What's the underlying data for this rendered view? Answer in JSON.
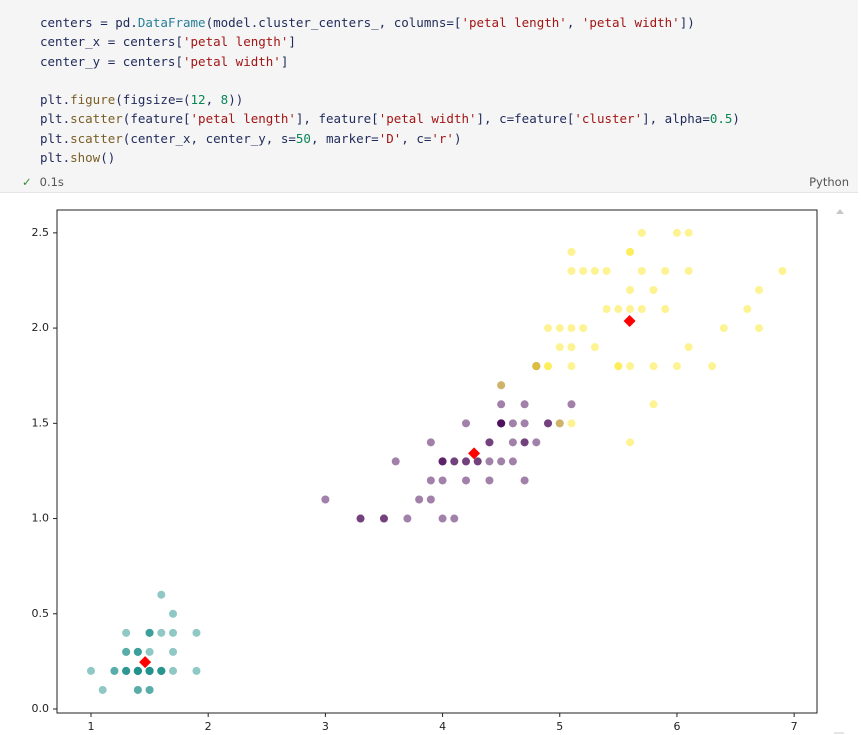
{
  "code": {
    "lines": [
      [
        [
          "centers = pd.",
          ""
        ],
        [
          "DataFrame",
          "t"
        ],
        [
          "(model.cluster_centers_, columns=[",
          ""
        ],
        [
          "'petal length'",
          "s"
        ],
        [
          ", ",
          ""
        ],
        [
          "'petal width'",
          "s"
        ],
        [
          "])",
          ""
        ]
      ],
      [
        [
          "center_x = centers[",
          ""
        ],
        [
          "'petal length'",
          "s"
        ],
        [
          "]",
          ""
        ]
      ],
      [
        [
          "center_y = centers[",
          ""
        ],
        [
          "'petal width'",
          "s"
        ],
        [
          "]",
          ""
        ]
      ],
      [],
      [
        [
          "plt.",
          ""
        ],
        [
          "figure",
          "f"
        ],
        [
          "(figsize=(",
          ""
        ],
        [
          "12",
          "n"
        ],
        [
          ", ",
          ""
        ],
        [
          "8",
          "n"
        ],
        [
          "))",
          ""
        ]
      ],
      [
        [
          "plt.",
          ""
        ],
        [
          "scatter",
          "f"
        ],
        [
          "(feature[",
          ""
        ],
        [
          "'petal length'",
          "s"
        ],
        [
          "], feature[",
          ""
        ],
        [
          "'petal width'",
          "s"
        ],
        [
          "], c=feature[",
          ""
        ],
        [
          "'cluster'",
          "s"
        ],
        [
          "], alpha=",
          ""
        ],
        [
          "0.5",
          "n"
        ],
        [
          ")",
          ""
        ]
      ],
      [
        [
          "plt.",
          ""
        ],
        [
          "scatter",
          "f"
        ],
        [
          "(center_x, center_y, s=",
          ""
        ],
        [
          "50",
          "n"
        ],
        [
          ", marker=",
          ""
        ],
        [
          "'D'",
          "s"
        ],
        [
          ", c=",
          ""
        ],
        [
          "'r'",
          "s"
        ],
        [
          ")",
          ""
        ]
      ],
      [
        [
          "plt.",
          ""
        ],
        [
          "show",
          "f"
        ],
        [
          "()",
          ""
        ]
      ]
    ],
    "status_icon": "✓",
    "status": "0.1s",
    "language": "Python"
  },
  "chart_data": {
    "type": "scatter",
    "xlim": [
      0.71,
      7.195
    ],
    "ylim": [
      -0.021,
      2.62
    ],
    "xticks": [
      1,
      2,
      3,
      4,
      5,
      6,
      7
    ],
    "yticks": [
      {
        "value": 0,
        "label": "0.0"
      },
      0.5,
      {
        "value": 1,
        "label": "1.0"
      },
      1.5,
      {
        "value": 2,
        "label": "2.0"
      },
      2.5
    ],
    "series": [
      {
        "color": "#21918c",
        "alpha": 0.5,
        "marker": "circle",
        "x": [
          1.4,
          1.4,
          1.3,
          1.5,
          1.4,
          1.7,
          1.4,
          1.5,
          1.4,
          1.5,
          1.5,
          1.6,
          1.4,
          1.1,
          1.2,
          1.5,
          1.3,
          1.4,
          1.7,
          1.5,
          1.7,
          1.5,
          1.0,
          1.7,
          1.9,
          1.6,
          1.6,
          1.5,
          1.4,
          1.6,
          1.6,
          1.5,
          1.5,
          1.4,
          1.5,
          1.2,
          1.3,
          1.4,
          1.3,
          1.5,
          1.3,
          1.3,
          1.3,
          1.6,
          1.9,
          1.4,
          1.6,
          1.4,
          1.5,
          1.4
        ],
        "y": [
          0.2,
          0.2,
          0.2,
          0.2,
          0.2,
          0.4,
          0.3,
          0.2,
          0.2,
          0.1,
          0.2,
          0.2,
          0.1,
          0.1,
          0.2,
          0.4,
          0.4,
          0.3,
          0.3,
          0.3,
          0.2,
          0.4,
          0.2,
          0.5,
          0.2,
          0.2,
          0.4,
          0.2,
          0.2,
          0.2,
          0.2,
          0.4,
          0.1,
          0.2,
          0.2,
          0.2,
          0.2,
          0.1,
          0.2,
          0.2,
          0.3,
          0.3,
          0.2,
          0.6,
          0.4,
          0.3,
          0.2,
          0.2,
          0.2,
          0.2
        ]
      },
      {
        "color": "#440154",
        "alpha": 0.5,
        "marker": "circle",
        "x": [
          4.7,
          4.5,
          4.0,
          4.6,
          4.5,
          4.7,
          3.3,
          4.6,
          3.9,
          3.5,
          4.2,
          4.0,
          4.7,
          3.6,
          4.4,
          4.5,
          4.1,
          4.5,
          3.9,
          4.8,
          4.0,
          4.9,
          4.7,
          4.3,
          4.4,
          4.8,
          4.5,
          3.5,
          3.8,
          3.7,
          3.9,
          5.1,
          4.5,
          4.5,
          4.7,
          4.4,
          4.1,
          4.0,
          4.4,
          4.6,
          4.0,
          3.3,
          4.2,
          4.2,
          4.2,
          4.3,
          3.0,
          4.1,
          4.8,
          4.9,
          5.0
        ],
        "y": [
          1.4,
          1.5,
          1.3,
          1.5,
          1.3,
          1.6,
          1.0,
          1.3,
          1.4,
          1.0,
          1.5,
          1.0,
          1.4,
          1.3,
          1.4,
          1.5,
          1.0,
          1.5,
          1.1,
          1.8,
          1.3,
          1.5,
          1.2,
          1.3,
          1.4,
          1.4,
          1.7,
          1.0,
          1.1,
          1.0,
          1.2,
          1.6,
          1.5,
          1.6,
          1.5,
          1.3,
          1.3,
          1.3,
          1.2,
          1.4,
          1.2,
          1.0,
          1.3,
          1.2,
          1.3,
          1.3,
          1.1,
          1.3,
          1.8,
          1.5,
          1.5
        ]
      },
      {
        "color": "#fde725",
        "alpha": 0.5,
        "marker": "circle",
        "x": [
          6.0,
          5.1,
          5.9,
          5.6,
          5.8,
          6.6,
          4.5,
          6.3,
          5.8,
          6.1,
          5.1,
          5.3,
          5.5,
          5.0,
          5.1,
          5.3,
          5.5,
          6.7,
          6.9,
          5.0,
          5.7,
          4.9,
          6.7,
          4.9,
          5.7,
          6.0,
          4.8,
          4.9,
          5.6,
          5.8,
          6.1,
          6.4,
          5.6,
          5.1,
          5.6,
          6.1,
          5.6,
          5.5,
          4.8,
          5.4,
          5.6,
          5.1,
          5.9,
          5.7,
          5.2,
          5.0,
          5.2,
          5.4,
          5.1
        ],
        "y": [
          2.5,
          1.9,
          2.1,
          1.8,
          2.2,
          2.1,
          1.7,
          1.8,
          1.8,
          2.5,
          2.0,
          1.9,
          2.1,
          2.0,
          2.4,
          2.3,
          1.8,
          2.2,
          2.3,
          1.5,
          2.3,
          2.0,
          2.0,
          1.8,
          2.1,
          1.8,
          1.8,
          1.8,
          2.1,
          1.6,
          1.9,
          2.0,
          2.2,
          1.5,
          1.4,
          2.3,
          2.4,
          1.8,
          1.8,
          2.1,
          2.4,
          2.3,
          2.3,
          2.5,
          2.3,
          1.9,
          2.0,
          2.3,
          1.8
        ]
      },
      {
        "color": "#ff0000",
        "alpha": 1,
        "marker": "diamond",
        "x": [
          1.462,
          4.269,
          5.596
        ],
        "y": [
          0.246,
          1.342,
          2.037
        ]
      }
    ]
  }
}
